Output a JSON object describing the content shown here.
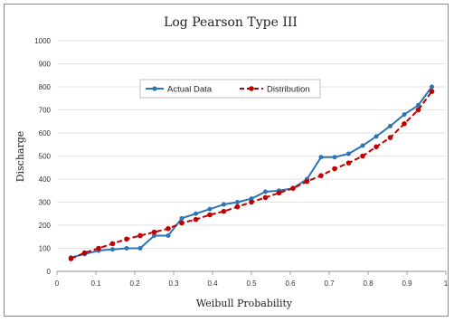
{
  "chart_data": {
    "type": "line",
    "title": "Log Pearson Type III",
    "xlabel": "Weibull Probability",
    "ylabel": "Discharge",
    "xlim": [
      0,
      1
    ],
    "ylim": [
      0,
      1000
    ],
    "x_ticks": [
      "0",
      "0.1",
      "0.2",
      "0.3",
      "0.4",
      "0.5",
      "0.6",
      "0.7",
      "0.8",
      "0.9",
      "1"
    ],
    "y_ticks": [
      "0",
      "100",
      "200",
      "300",
      "400",
      "500",
      "600",
      "700",
      "800",
      "900",
      "1000"
    ],
    "grid": true,
    "legend_position": "top-center",
    "series": [
      {
        "name": "Actual Data",
        "color": "#2e75b6",
        "style": "solid",
        "marker": "circle",
        "x": [
          0.036,
          0.071,
          0.107,
          0.143,
          0.179,
          0.214,
          0.25,
          0.286,
          0.321,
          0.357,
          0.393,
          0.429,
          0.464,
          0.5,
          0.536,
          0.571,
          0.607,
          0.643,
          0.679,
          0.714,
          0.75,
          0.786,
          0.821,
          0.857,
          0.893,
          0.929,
          0.964
        ],
        "y": [
          60,
          75,
          90,
          95,
          100,
          100,
          155,
          155,
          230,
          250,
          270,
          290,
          300,
          315,
          345,
          350,
          360,
          400,
          495,
          495,
          510,
          545,
          585,
          630,
          680,
          720,
          800
        ]
      },
      {
        "name": "Distribution",
        "color": "#c00000",
        "style": "dashed",
        "marker": "circle",
        "x": [
          0.036,
          0.071,
          0.107,
          0.143,
          0.179,
          0.214,
          0.25,
          0.286,
          0.321,
          0.357,
          0.393,
          0.429,
          0.464,
          0.5,
          0.536,
          0.571,
          0.607,
          0.643,
          0.679,
          0.714,
          0.75,
          0.786,
          0.821,
          0.857,
          0.893,
          0.929,
          0.964
        ],
        "y": [
          55,
          80,
          100,
          120,
          140,
          155,
          170,
          185,
          210,
          225,
          245,
          260,
          280,
          300,
          320,
          340,
          360,
          390,
          415,
          445,
          470,
          500,
          540,
          580,
          640,
          700,
          780
        ]
      }
    ]
  }
}
